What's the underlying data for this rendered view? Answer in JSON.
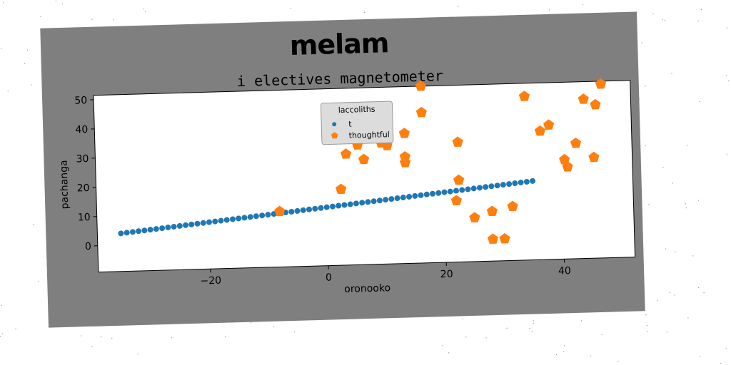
{
  "figure": {
    "suptitle": "melam"
  },
  "chart_data": {
    "type": "scatter",
    "title": "i electives magnetometer",
    "xlabel": "oronooko",
    "ylabel": "pachanga",
    "xlim": [
      -39,
      52
    ],
    "ylim": [
      -9,
      51.5
    ],
    "xticks": [
      -20,
      0,
      20,
      40
    ],
    "yticks": [
      0,
      10,
      20,
      30,
      40,
      50
    ],
    "grid": false,
    "legend": {
      "title": "laccoliths",
      "placement": "top-center"
    },
    "series": [
      {
        "name": "t",
        "marker": "circle",
        "color": "#1f77b4",
        "x": [
          -35.0,
          -34.0,
          -33.0,
          -32.0,
          -31.0,
          -30.0,
          -29.0,
          -28.0,
          -27.0,
          -26.0,
          -25.0,
          -24.0,
          -23.0,
          -22.0,
          -21.0,
          -20.0,
          -19.0,
          -18.0,
          -17.0,
          -16.0,
          -15.0,
          -14.0,
          -13.0,
          -12.0,
          -11.0,
          -10.0,
          -9.0,
          -8.0,
          -7.0,
          -6.0,
          -5.0,
          -4.0,
          -3.0,
          -2.0,
          -1.0,
          0.0,
          1.0,
          2.0,
          3.0,
          4.0,
          5.0,
          6.0,
          7.0,
          8.0,
          9.0,
          10.0,
          11.0,
          12.0,
          13.0,
          14.0,
          15.0,
          16.0,
          17.0,
          18.0,
          19.0,
          20.0,
          21.0,
          22.0,
          23.0,
          24.0,
          25.0,
          26.0,
          27.0,
          28.0,
          29.0,
          30.0,
          31.0,
          32.0,
          33.0,
          34.0,
          35.0
        ],
        "y": [
          4.0,
          4.2,
          4.4,
          4.6,
          4.8,
          5.0,
          5.2,
          5.4,
          5.6,
          5.8,
          6.0,
          6.2,
          6.4,
          6.6,
          6.8,
          7.0,
          7.2,
          7.4,
          7.6,
          7.8,
          8.0,
          8.2,
          8.4,
          8.6,
          8.8,
          9.0,
          9.2,
          9.4,
          9.6,
          9.8,
          10.0,
          10.2,
          10.4,
          10.6,
          10.8,
          11.0,
          11.2,
          11.4,
          11.6,
          11.8,
          12.0,
          12.2,
          12.4,
          12.6,
          12.8,
          13.0,
          13.2,
          13.4,
          13.6,
          13.8,
          14.0,
          14.2,
          14.4,
          14.6,
          14.8,
          15.0,
          15.2,
          15.4,
          15.6,
          15.8,
          16.0,
          16.2,
          16.4,
          16.6,
          16.8,
          17.0,
          17.2,
          17.4,
          17.6,
          17.8,
          18.0
        ]
      },
      {
        "name": "thoughtful",
        "marker": "pentagon",
        "color": "#ff7f0e",
        "x": [
          -8,
          2.5,
          3.5,
          5.5,
          6.5,
          7.0,
          9.5,
          10.5,
          13.5,
          13.5,
          13.5,
          16.5,
          16.5,
          22.0,
          22.5,
          22.5,
          25,
          28,
          28,
          30,
          31.5,
          34,
          36.5,
          38,
          40.5,
          41,
          42.5,
          44,
          45.5,
          46,
          47
        ],
        "y": [
          10,
          17,
          29,
          32,
          27,
          38,
          32.5,
          31.5,
          35.5,
          27.5,
          25.5,
          51.5,
          42.5,
          12,
          32,
          19,
          6,
          8,
          -1.5,
          -1.5,
          9.5,
          47,
          35,
          37,
          25,
          22.5,
          30.5,
          45.5,
          25.5,
          43.5,
          50.5
        ]
      }
    ]
  }
}
